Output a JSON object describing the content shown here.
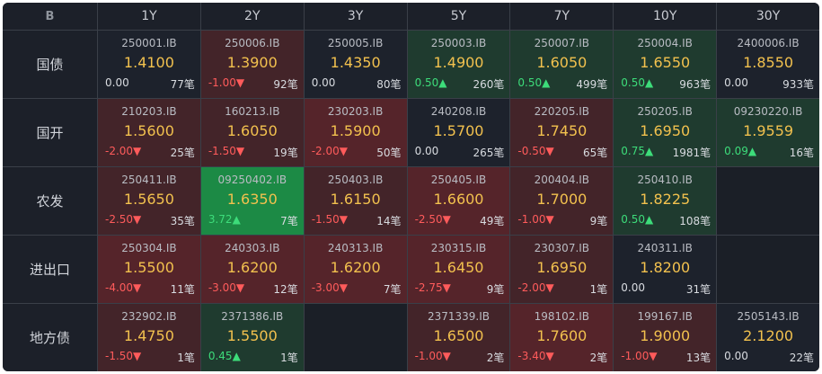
{
  "corner_label": "B",
  "tenors": [
    "1Y",
    "2Y",
    "3Y",
    "5Y",
    "7Y",
    "10Y",
    "30Y"
  ],
  "rows": [
    {
      "label": "国债",
      "cells": [
        {
          "code": "250001.IB",
          "rate": "1.4100",
          "chg": "0.00",
          "dir": "flat",
          "cnt": "77笔",
          "tone": "neutral"
        },
        {
          "code": "250006.IB",
          "rate": "1.3900",
          "chg": "-1.00▼",
          "dir": "neg",
          "cnt": "92笔",
          "tone": "down"
        },
        {
          "code": "250005.IB",
          "rate": "1.4350",
          "chg": "0.00",
          "dir": "flat",
          "cnt": "80笔",
          "tone": "neutral"
        },
        {
          "code": "250003.IB",
          "rate": "1.4900",
          "chg": "0.50▲",
          "dir": "pos",
          "cnt": "260笔",
          "tone": "up"
        },
        {
          "code": "250007.IB",
          "rate": "1.6050",
          "chg": "0.50▲",
          "dir": "pos",
          "cnt": "499笔",
          "tone": "up"
        },
        {
          "code": "250004.IB",
          "rate": "1.6550",
          "chg": "0.50▲",
          "dir": "pos",
          "cnt": "963笔",
          "tone": "up"
        },
        {
          "code": "2400006.IB",
          "rate": "1.8550",
          "chg": "0.00",
          "dir": "flat",
          "cnt": "933笔",
          "tone": "neutral"
        }
      ]
    },
    {
      "label": "国开",
      "cells": [
        {
          "code": "210203.IB",
          "rate": "1.5600",
          "chg": "-2.00▼",
          "dir": "neg",
          "cnt": "25笔",
          "tone": "down"
        },
        {
          "code": "160213.IB",
          "rate": "1.6050",
          "chg": "-1.50▼",
          "dir": "neg",
          "cnt": "19笔",
          "tone": "down"
        },
        {
          "code": "230203.IB",
          "rate": "1.5900",
          "chg": "-2.00▼",
          "dir": "neg",
          "cnt": "50笔",
          "tone": "downstrong"
        },
        {
          "code": "240208.IB",
          "rate": "1.5700",
          "chg": "0.00",
          "dir": "flat",
          "cnt": "265笔",
          "tone": "neutral"
        },
        {
          "code": "220205.IB",
          "rate": "1.7450",
          "chg": "-0.50▼",
          "dir": "neg",
          "cnt": "65笔",
          "tone": "down"
        },
        {
          "code": "250205.IB",
          "rate": "1.6950",
          "chg": "0.75▲",
          "dir": "pos",
          "cnt": "1981笔",
          "tone": "up"
        },
        {
          "code": "09230220.IB",
          "rate": "1.9559",
          "chg": "0.09▲",
          "dir": "pos",
          "cnt": "16笔",
          "tone": "up"
        }
      ]
    },
    {
      "label": "农发",
      "cells": [
        {
          "code": "250411.IB",
          "rate": "1.5650",
          "chg": "-2.50▼",
          "dir": "neg",
          "cnt": "35笔",
          "tone": "down"
        },
        {
          "code": "09250402.IB",
          "rate": "1.6350",
          "chg": "3.72▲",
          "dir": "pos",
          "cnt": "7笔",
          "tone": "upstrong"
        },
        {
          "code": "250403.IB",
          "rate": "1.6150",
          "chg": "-1.50▼",
          "dir": "neg",
          "cnt": "14笔",
          "tone": "down"
        },
        {
          "code": "250405.IB",
          "rate": "1.6600",
          "chg": "-2.50▼",
          "dir": "neg",
          "cnt": "49笔",
          "tone": "downstrong"
        },
        {
          "code": "200404.IB",
          "rate": "1.7000",
          "chg": "-1.00▼",
          "dir": "neg",
          "cnt": "9笔",
          "tone": "down"
        },
        {
          "code": "250410.IB",
          "rate": "1.8225",
          "chg": "0.50▲",
          "dir": "pos",
          "cnt": "108笔",
          "tone": "up"
        },
        null
      ]
    },
    {
      "label": "进出口",
      "cells": [
        {
          "code": "250304.IB",
          "rate": "1.5500",
          "chg": "-4.00▼",
          "dir": "neg",
          "cnt": "11笔",
          "tone": "downstrong"
        },
        {
          "code": "240303.IB",
          "rate": "1.6200",
          "chg": "-3.00▼",
          "dir": "neg",
          "cnt": "12笔",
          "tone": "downstrong"
        },
        {
          "code": "240313.IB",
          "rate": "1.6200",
          "chg": "-3.00▼",
          "dir": "neg",
          "cnt": "7笔",
          "tone": "downstrong"
        },
        {
          "code": "230315.IB",
          "rate": "1.6450",
          "chg": "-2.75▼",
          "dir": "neg",
          "cnt": "9笔",
          "tone": "downstrong"
        },
        {
          "code": "230307.IB",
          "rate": "1.6950",
          "chg": "-2.00▼",
          "dir": "neg",
          "cnt": "1笔",
          "tone": "down"
        },
        {
          "code": "240311.IB",
          "rate": "1.8200",
          "chg": "0.00",
          "dir": "flat",
          "cnt": "31笔",
          "tone": "neutral"
        },
        null
      ]
    },
    {
      "label": "地方债",
      "cells": [
        {
          "code": "232902.IB",
          "rate": "1.4750",
          "chg": "-1.50▼",
          "dir": "neg",
          "cnt": "1笔",
          "tone": "down"
        },
        {
          "code": "2371386.IB",
          "rate": "1.5500",
          "chg": "0.45▲",
          "dir": "pos",
          "cnt": "1笔",
          "tone": "up"
        },
        null,
        {
          "code": "2371339.IB",
          "rate": "1.6500",
          "chg": "-1.00▼",
          "dir": "neg",
          "cnt": "2笔",
          "tone": "down"
        },
        {
          "code": "198102.IB",
          "rate": "1.7600",
          "chg": "-3.40▼",
          "dir": "neg",
          "cnt": "2笔",
          "tone": "downstrong"
        },
        {
          "code": "199167.IB",
          "rate": "1.9000",
          "chg": "-1.00▼",
          "dir": "neg",
          "cnt": "13笔",
          "tone": "down"
        },
        {
          "code": "2505143.IB",
          "rate": "2.1200",
          "chg": "0.00",
          "dir": "flat",
          "cnt": "22笔",
          "tone": "neutral"
        }
      ]
    }
  ]
}
